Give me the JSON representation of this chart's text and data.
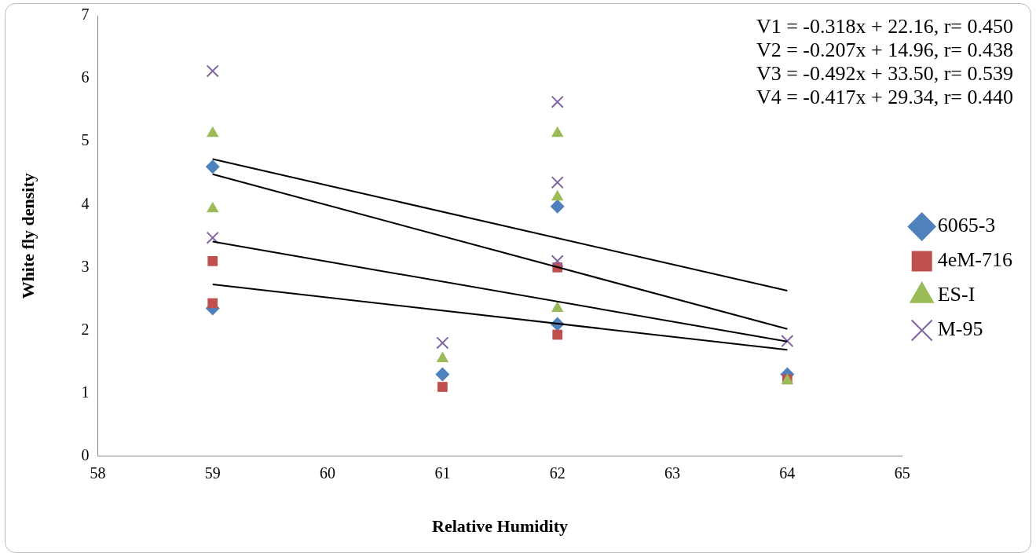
{
  "chart_data": {
    "type": "scatter",
    "xlabel": "Relative Humidity",
    "ylabel": "White fly density",
    "xlim": [
      58,
      65
    ],
    "xticks": [
      58,
      59,
      60,
      61,
      62,
      63,
      64,
      65
    ],
    "ylim": [
      0,
      7
    ],
    "yticks": [
      0,
      1,
      2,
      3,
      4,
      5,
      6,
      7
    ],
    "grid": false,
    "legend": "right",
    "annotations": [
      "V1 = -0.318x + 22.16, r= 0.450",
      "V2 = -0.207x + 14.96, r= 0.438",
      "V3 = -0.492x + 33.50, r= 0.539",
      "V4 = -0.417x + 29.34, r= 0.440"
    ],
    "series": [
      {
        "name": "6065-3",
        "color": "#4f81bd",
        "marker": "diamond",
        "x": [
          59,
          59,
          61,
          62,
          62,
          64
        ],
        "values": [
          4.6,
          2.35,
          1.3,
          3.97,
          2.1,
          1.3
        ]
      },
      {
        "name": "4eM-716",
        "color": "#c0504d",
        "marker": "square",
        "x": [
          59,
          59,
          61,
          62,
          62,
          64
        ],
        "values": [
          3.1,
          2.43,
          1.1,
          3.0,
          1.93,
          1.22
        ]
      },
      {
        "name": "ES-I",
        "color": "#9bbb59",
        "marker": "triangle",
        "x": [
          59,
          59,
          61,
          62,
          62,
          62,
          64
        ],
        "values": [
          5.13,
          3.93,
          1.55,
          5.13,
          4.12,
          2.35,
          1.2
        ]
      },
      {
        "name": "M-95",
        "color": "#8064a2",
        "marker": "cross",
        "x": [
          59,
          59,
          61,
          62,
          62,
          62,
          64
        ],
        "values": [
          6.12,
          3.47,
          1.8,
          5.63,
          4.35,
          3.1,
          1.83
        ]
      },
      {
        "type": "line",
        "color": "#000000",
        "marker": "none",
        "x": [
          59,
          64
        ],
        "values": [
          4.72,
          2.63
        ]
      },
      {
        "type": "line",
        "color": "#000000",
        "marker": "none",
        "x": [
          59,
          64
        ],
        "values": [
          4.48,
          2.02
        ]
      },
      {
        "type": "line",
        "color": "#000000",
        "marker": "none",
        "x": [
          59,
          64
        ],
        "values": [
          3.41,
          1.82
        ]
      },
      {
        "type": "line",
        "color": "#000000",
        "marker": "none",
        "x": [
          59,
          64
        ],
        "values": [
          2.73,
          1.69
        ]
      }
    ]
  }
}
